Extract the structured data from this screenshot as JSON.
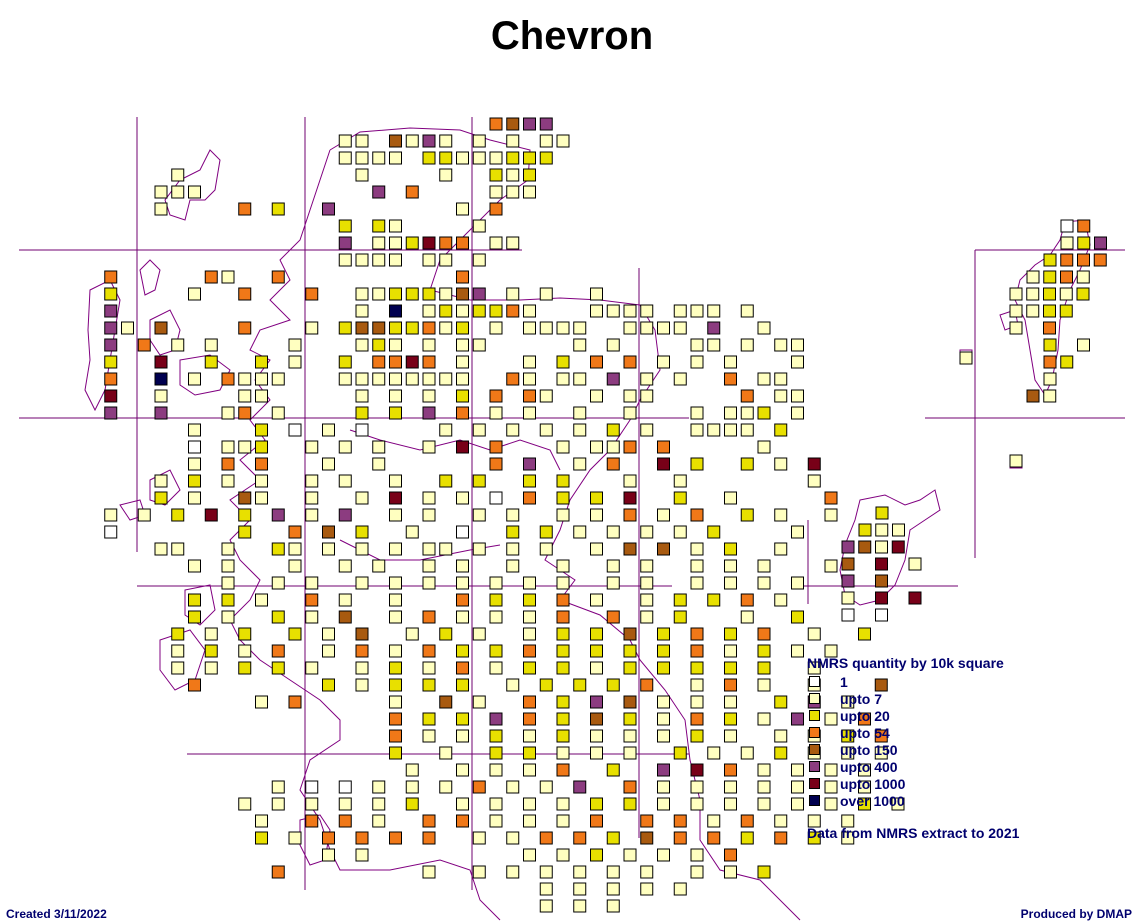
{
  "title": "Chevron",
  "legend": {
    "title": "NMRS quantity by 10k square",
    "items": [
      {
        "label": "1",
        "color": "#ffffff"
      },
      {
        "label": "upto 7",
        "color": "#ffffc0"
      },
      {
        "label": "upto 20",
        "color": "#e8e000"
      },
      {
        "label": "upto 54",
        "color": "#f07818"
      },
      {
        "label": "upto 150",
        "color": "#a85a10"
      },
      {
        "label": "upto 400",
        "color": "#8c3c80"
      },
      {
        "label": "upto 1000",
        "color": "#780018"
      },
      {
        "label": "over 1000",
        "color": "#000050"
      }
    ],
    "source": "Data from NMRS extract to 2021"
  },
  "footer": {
    "created": "Created 3/11/2022",
    "produced": "Produced by DMAP"
  },
  "colors": {
    "grid": "#700070",
    "coast": "#800080",
    "text": "#00006e"
  }
}
